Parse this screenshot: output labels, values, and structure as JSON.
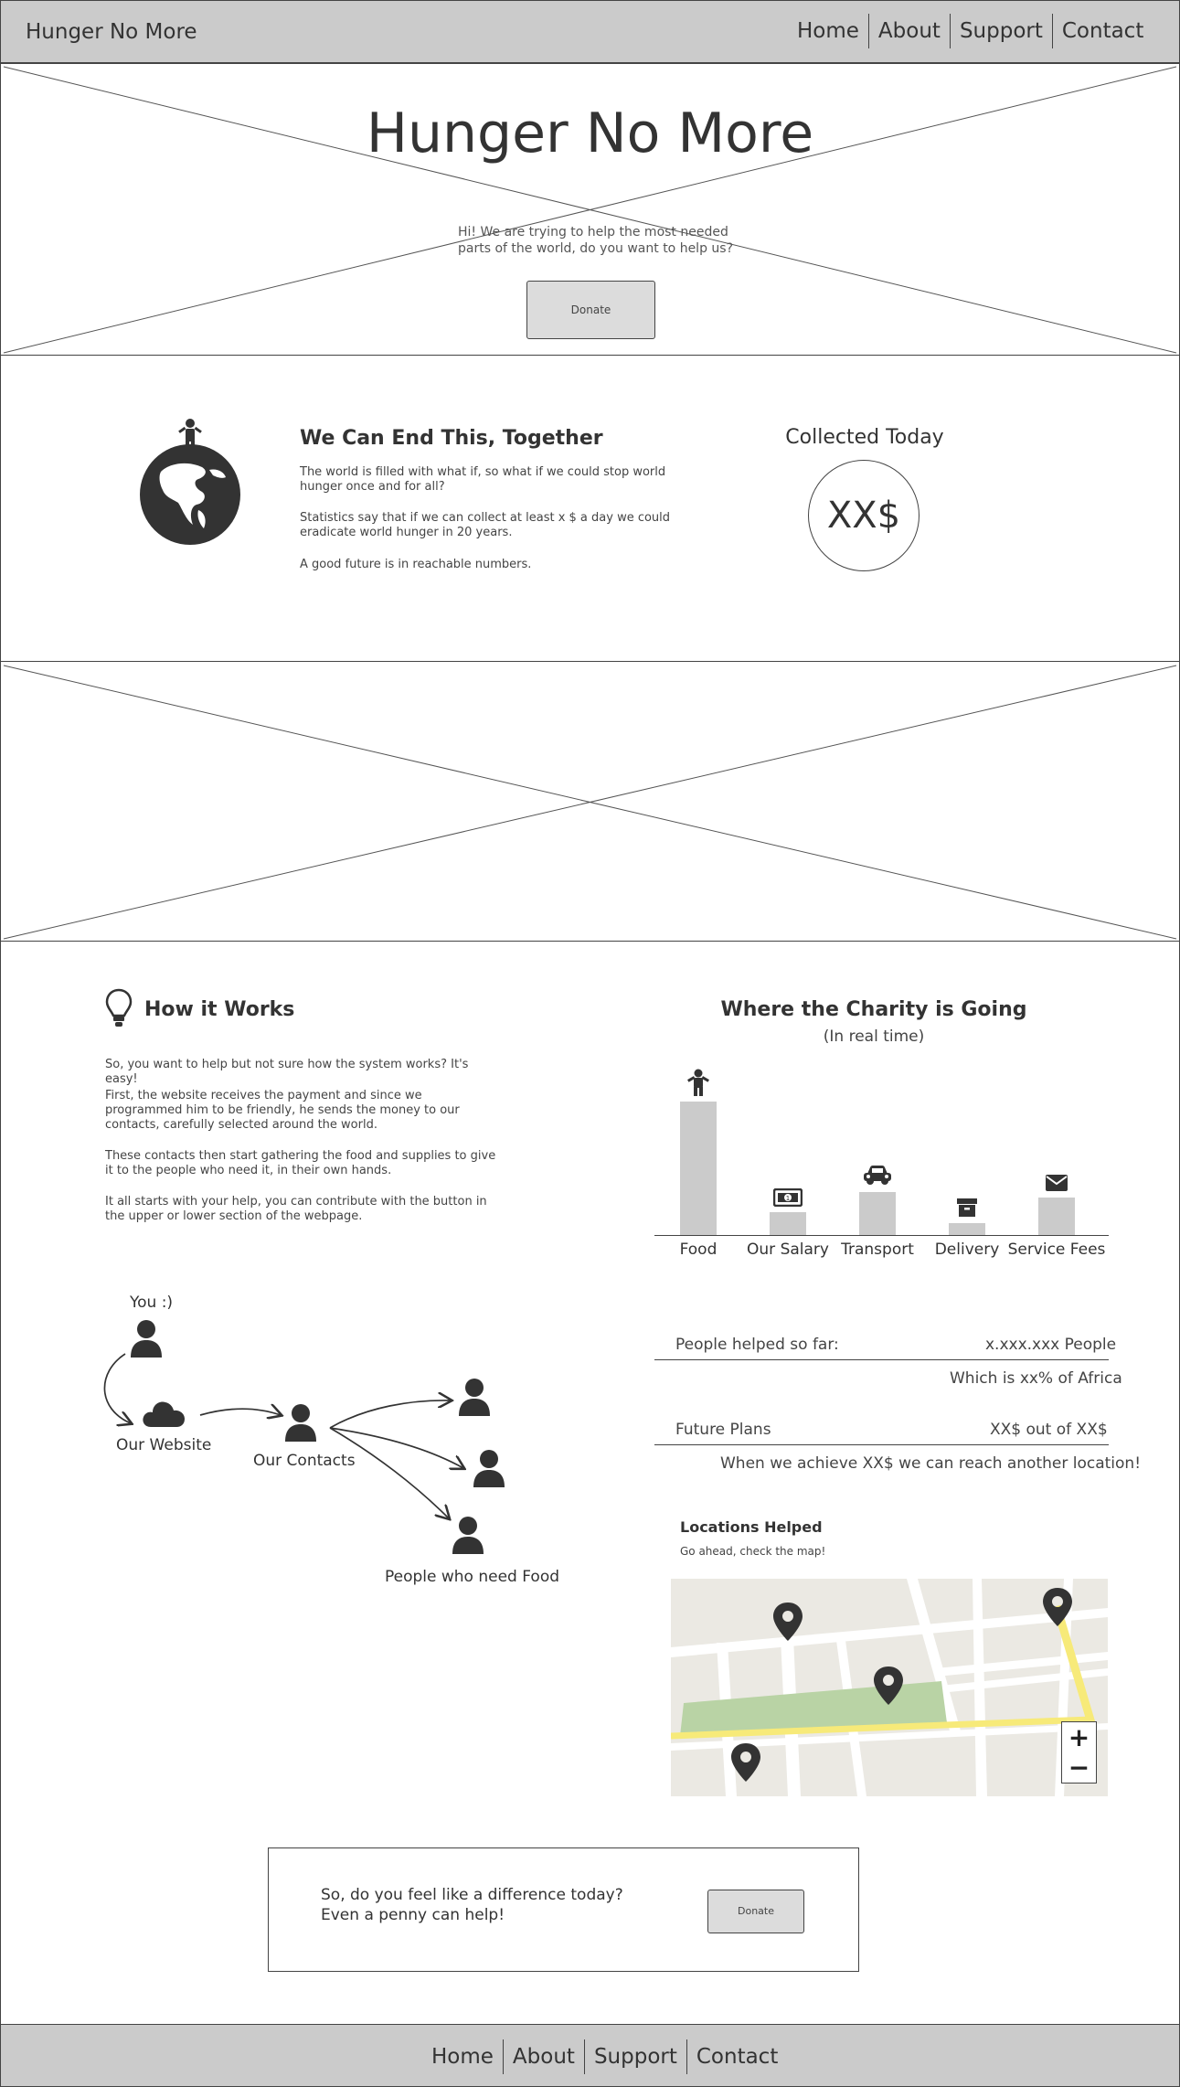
{
  "header": {
    "brand": "Hunger No More",
    "nav": [
      "Home",
      "About",
      "Support",
      "Contact"
    ]
  },
  "hero": {
    "title": "Hunger No More",
    "text": "Hi! We are trying to help the most needed parts of the world, do you want to help us?",
    "donate_label": "Donate"
  },
  "mission": {
    "heading": "We Can End This, Together",
    "p1": "The world is filled with what if, so what if we could stop world hunger once and for all?",
    "p2": "Statistics say that if we can collect at least x $ a day we could eradicate world hunger in 20 years.",
    "p3": "A good future is in reachable numbers.",
    "collected_label": "Collected Today",
    "collected_value": "XX$"
  },
  "how": {
    "heading": "How it Works",
    "p1": "So, you want to help but not sure how the system works? It's easy!",
    "p2": "First, the website receives the payment and since we programmed him to be friendly, he sends the money to our contacts, carefully selected around the world.",
    "p3": "These contacts then start gathering the food and supplies to give it to the people who need it, in their own hands.",
    "p4": "It all starts with your help, you can contribute with the button in the upper or lower section of the webpage.",
    "flow": {
      "you": "You :)",
      "website": "Our Website",
      "contacts": "Our Contacts",
      "people": "People who need Food"
    }
  },
  "charity": {
    "heading": "Where the Charity is Going",
    "subheading": "(In real time)"
  },
  "chart_data": {
    "type": "bar",
    "title": "Where the Charity is Going",
    "subtitle": "(In real time)",
    "categories": [
      "Food",
      "Our Salary",
      "Transport",
      "Delivery",
      "Service Fees"
    ],
    "values": [
      100,
      17,
      32,
      9,
      28
    ],
    "icons": [
      "person-icon",
      "money-icon",
      "car-icon",
      "box-icon",
      "envelope-icon"
    ],
    "bar_color": "#cbcbcb",
    "grid": false
  },
  "stats": {
    "people_label": "People helped so far:",
    "people_value": "x.xxx.xxx People",
    "people_note": "Which is xx% of Africa",
    "plans_label": "Future Plans",
    "plans_value": "XX$ out of XX$",
    "plans_note": "When we achieve XX$ we can reach another location!"
  },
  "locations": {
    "heading": "Locations Helped",
    "subtext": "Go ahead, check the map!",
    "zoom_in": "+",
    "zoom_out": "−"
  },
  "cta": {
    "line1": "So, do you feel like a difference today?",
    "line2": "Even a penny can help!",
    "donate_label": "Donate"
  },
  "footer": {
    "nav": [
      "Home",
      "About",
      "Support",
      "Contact"
    ]
  },
  "colors": {
    "bar": "#cbcbcb",
    "header_bg": "#cbcbcb",
    "map_bg": "#ebe9e3",
    "map_park": "#b9d3a5",
    "map_route": "#f7ea79"
  }
}
